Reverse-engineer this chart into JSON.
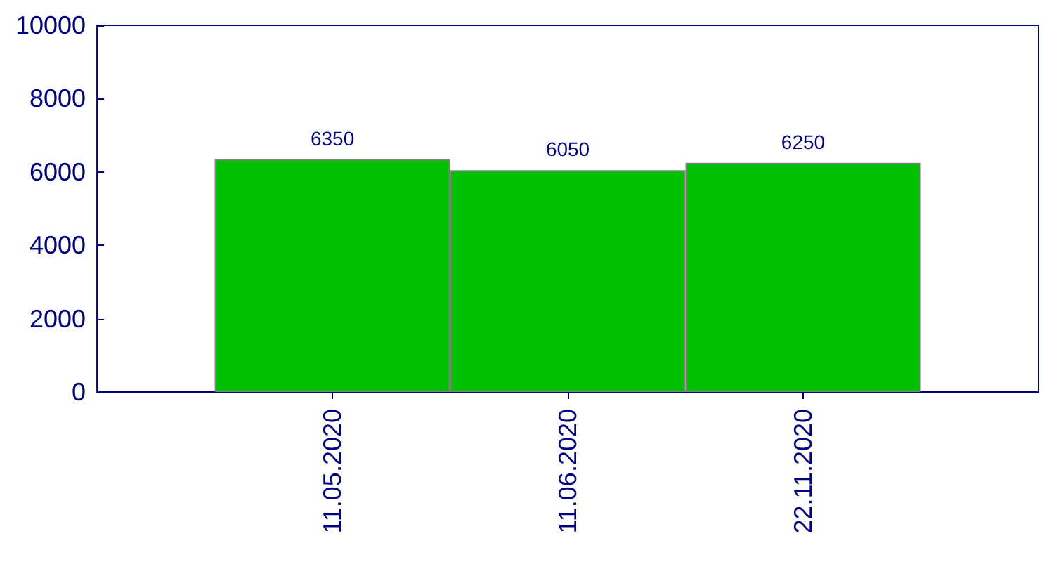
{
  "chart_data": {
    "type": "bar",
    "categories": [
      "11.05.2020",
      "11.06.2020",
      "22.11.2020"
    ],
    "values": [
      6350,
      6050,
      6250
    ],
    "color": "#00c000",
    "ylim": [
      0,
      10000
    ],
    "yticks": [
      0,
      2000,
      4000,
      6000,
      8000,
      10000
    ],
    "data_labels": true,
    "grid": false
  }
}
